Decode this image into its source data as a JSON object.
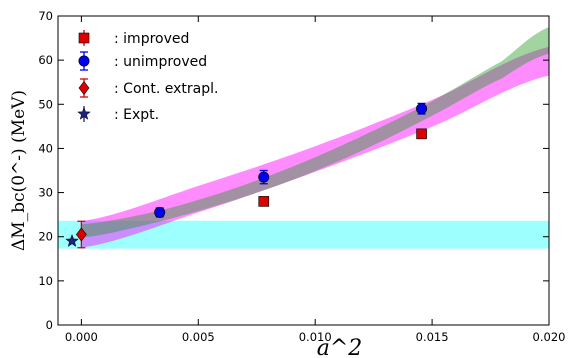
{
  "chart_data": {
    "type": "scatter",
    "xlabel": "a^2",
    "ylabel": "ΔM_bc(0^-) (MeV)",
    "xlim": [
      -0.001,
      0.02
    ],
    "ylim": [
      0,
      70
    ],
    "xticks": [
      0.0,
      0.005,
      0.01,
      0.015,
      0.02
    ],
    "xtick_labels": [
      "0.000",
      "0.005",
      "0.010",
      "0.015",
      "0.020"
    ],
    "yticks": [
      0,
      10,
      20,
      30,
      40,
      50,
      60,
      70
    ],
    "ytick_labels": [
      "0",
      "10",
      "20",
      "30",
      "40",
      "50",
      "60",
      "70"
    ],
    "grid": false,
    "legend_position": "top-left",
    "series": [
      {
        "name": ":  improved",
        "marker": "square",
        "color": "#dd0000",
        "points": [
          {
            "x": 0.0078,
            "y": 28.0,
            "err": 1.0
          },
          {
            "x": 0.01455,
            "y": 43.3,
            "err": 0.8
          }
        ]
      },
      {
        "name": ": unimproved",
        "marker": "circle",
        "color": "#0000ee",
        "points": [
          {
            "x": 0.00335,
            "y": 25.5,
            "err": 1.0
          },
          {
            "x": 0.0078,
            "y": 33.5,
            "err": 1.5
          },
          {
            "x": 0.01455,
            "y": 49.0,
            "err": 1.2
          }
        ]
      },
      {
        "name": ":  Cont. extrapl.",
        "marker": "diamond",
        "color": "#dd0000",
        "points": [
          {
            "x": 0.0,
            "y": 20.5,
            "err": 3.0
          }
        ]
      },
      {
        "name": ":  Expt.",
        "marker": "star",
        "color": "#1a237e",
        "points": [
          {
            "x": -0.0004,
            "y": 19.0,
            "err": 0
          }
        ]
      }
    ],
    "bands": [
      {
        "color": "#00ffff",
        "opacity": 0.38,
        "x": [
          -0.001,
          0.02
        ],
        "low": [
          17.3,
          17.3
        ],
        "high": [
          23.6,
          23.6
        ]
      },
      {
        "color": "#ff00ff",
        "opacity": 0.45,
        "x": [
          0.0,
          0.005,
          0.01,
          0.015,
          0.02
        ],
        "low": [
          17.5,
          25.5,
          34.7,
          44.9,
          56.5
        ],
        "high": [
          23.5,
          31.5,
          40.5,
          51.0,
          63.0
        ]
      },
      {
        "color": "#229922",
        "opacity": 0.42,
        "x": [
          0.0,
          0.003,
          0.006,
          0.009,
          0.012,
          0.015,
          0.018,
          0.02
        ],
        "low": [
          19.8,
          23.0,
          27.4,
          32.8,
          39.5,
          47.4,
          55.9,
          61.5
        ],
        "high": [
          22.8,
          25.5,
          30.0,
          35.8,
          42.8,
          50.7,
          59.8,
          67.5
        ]
      }
    ]
  }
}
